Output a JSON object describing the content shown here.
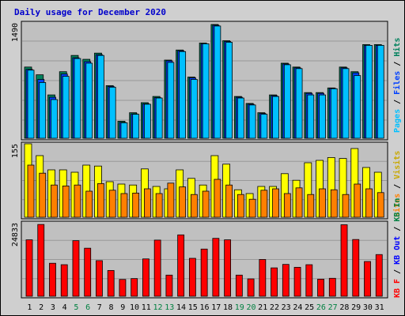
{
  "title": "Daily usage for December 2020",
  "colors": {
    "background": "#cfcfcf",
    "plot_background": "#c0c0c0",
    "title": "#0000cc",
    "hits": "#00805c",
    "files": "#0040ff",
    "pages": "#00c0ff",
    "visits": "#ffff00",
    "sites": "#ff8000",
    "kbin": "#008040",
    "kbout": "#0000ff",
    "kbf": "#ff0000",
    "weekday_tick": "#000000",
    "weekend_tick": "#008040"
  },
  "chart_data": [
    {
      "type": "bar",
      "title": "Daily usage for December 2020",
      "categories": [
        "1",
        "2",
        "3",
        "4",
        "5",
        "6",
        "7",
        "8",
        "9",
        "10",
        "11",
        "12",
        "13",
        "14",
        "15",
        "16",
        "17",
        "18",
        "19",
        "20",
        "21",
        "22",
        "23",
        "24",
        "25",
        "26",
        "27",
        "28",
        "29",
        "30",
        "31"
      ],
      "weekend_days": [
        "5",
        "6",
        "12",
        "13",
        "19",
        "20",
        "26",
        "27"
      ],
      "ylabel_parts": [
        "Pages",
        "Files",
        "Hits"
      ],
      "ymax_label": "1490",
      "ylim": [
        0,
        1490
      ],
      "grid": true,
      "series": [
        {
          "name": "Hits",
          "values": [
            920,
            820,
            560,
            860,
            1070,
            1020,
            1100,
            680,
            220,
            330,
            460,
            540,
            1010,
            1140,
            790,
            1230,
            1470,
            1260,
            540,
            450,
            330,
            560,
            970,
            920,
            590,
            590,
            650,
            920,
            860,
            1210,
            1210
          ]
        },
        {
          "name": "Files",
          "values": [
            890,
            760,
            530,
            830,
            1040,
            990,
            1080,
            670,
            205,
            315,
            445,
            525,
            1000,
            1130,
            780,
            1220,
            1460,
            1250,
            530,
            440,
            320,
            550,
            960,
            910,
            580,
            580,
            645,
            910,
            845,
            1200,
            1200
          ]
        },
        {
          "name": "Pages",
          "values": [
            880,
            720,
            500,
            800,
            1030,
            970,
            1070,
            660,
            200,
            310,
            440,
            520,
            980,
            1120,
            760,
            1220,
            1450,
            1240,
            520,
            430,
            310,
            540,
            950,
            900,
            560,
            560,
            640,
            900,
            810,
            1200,
            1200
          ]
        }
      ]
    },
    {
      "type": "bar",
      "categories": [
        "1",
        "2",
        "3",
        "4",
        "5",
        "6",
        "7",
        "8",
        "9",
        "10",
        "11",
        "12",
        "13",
        "14",
        "15",
        "16",
        "17",
        "18",
        "19",
        "20",
        "21",
        "22",
        "23",
        "24",
        "25",
        "26",
        "27",
        "28",
        "29",
        "30",
        "31"
      ],
      "ylabel_parts": [
        "Sites",
        "Visits"
      ],
      "ymax_label": "155",
      "ylim": [
        0,
        155
      ],
      "grid": true,
      "series": [
        {
          "name": "Visits",
          "values": [
            155,
            130,
            100,
            100,
            95,
            110,
            108,
            75,
            70,
            68,
            102,
            65,
            60,
            100,
            82,
            68,
            130,
            112,
            58,
            50,
            65,
            65,
            92,
            78,
            115,
            120,
            126,
            124,
            145,
            105,
            95
          ]
        },
        {
          "name": "Sites",
          "values": [
            110,
            93,
            68,
            66,
            68,
            55,
            71,
            57,
            50,
            51,
            60,
            50,
            72,
            64,
            48,
            55,
            80,
            68,
            48,
            38,
            57,
            60,
            50,
            62,
            48,
            60,
            58,
            48,
            70,
            60,
            52
          ]
        }
      ]
    },
    {
      "type": "bar",
      "categories": [
        "1",
        "2",
        "3",
        "4",
        "5",
        "6",
        "7",
        "8",
        "9",
        "10",
        "11",
        "12",
        "13",
        "14",
        "15",
        "16",
        "17",
        "18",
        "19",
        "20",
        "21",
        "22",
        "23",
        "24",
        "25",
        "26",
        "27",
        "28",
        "29",
        "30",
        "31"
      ],
      "ylabel_parts": [
        "KB F",
        "KB Out",
        "KB In"
      ],
      "ymax_label": "24833",
      "ylim": [
        0,
        24833
      ],
      "grid": true,
      "series": [
        {
          "name": "KB F",
          "values": [
            19500,
            24800,
            11400,
            10900,
            19200,
            16600,
            12300,
            8900,
            5800,
            6100,
            12900,
            19400,
            7300,
            21200,
            13100,
            16300,
            20000,
            19500,
            7300,
            6000,
            12700,
            9800,
            11000,
            10000,
            10900,
            5900,
            6200,
            24700,
            19600,
            12000,
            14400
          ]
        }
      ]
    }
  ],
  "panel_labels": {
    "top": {
      "pages": "Pages",
      "files": "Files",
      "hits": "Hits",
      "sep": " / "
    },
    "middle": {
      "sites": "Sites",
      "visits": "Visits",
      "sep": " / "
    },
    "bottom": {
      "kbf": "KB F",
      "kbout": "KB Out",
      "kbin": "KB In",
      "sep": " / "
    }
  }
}
